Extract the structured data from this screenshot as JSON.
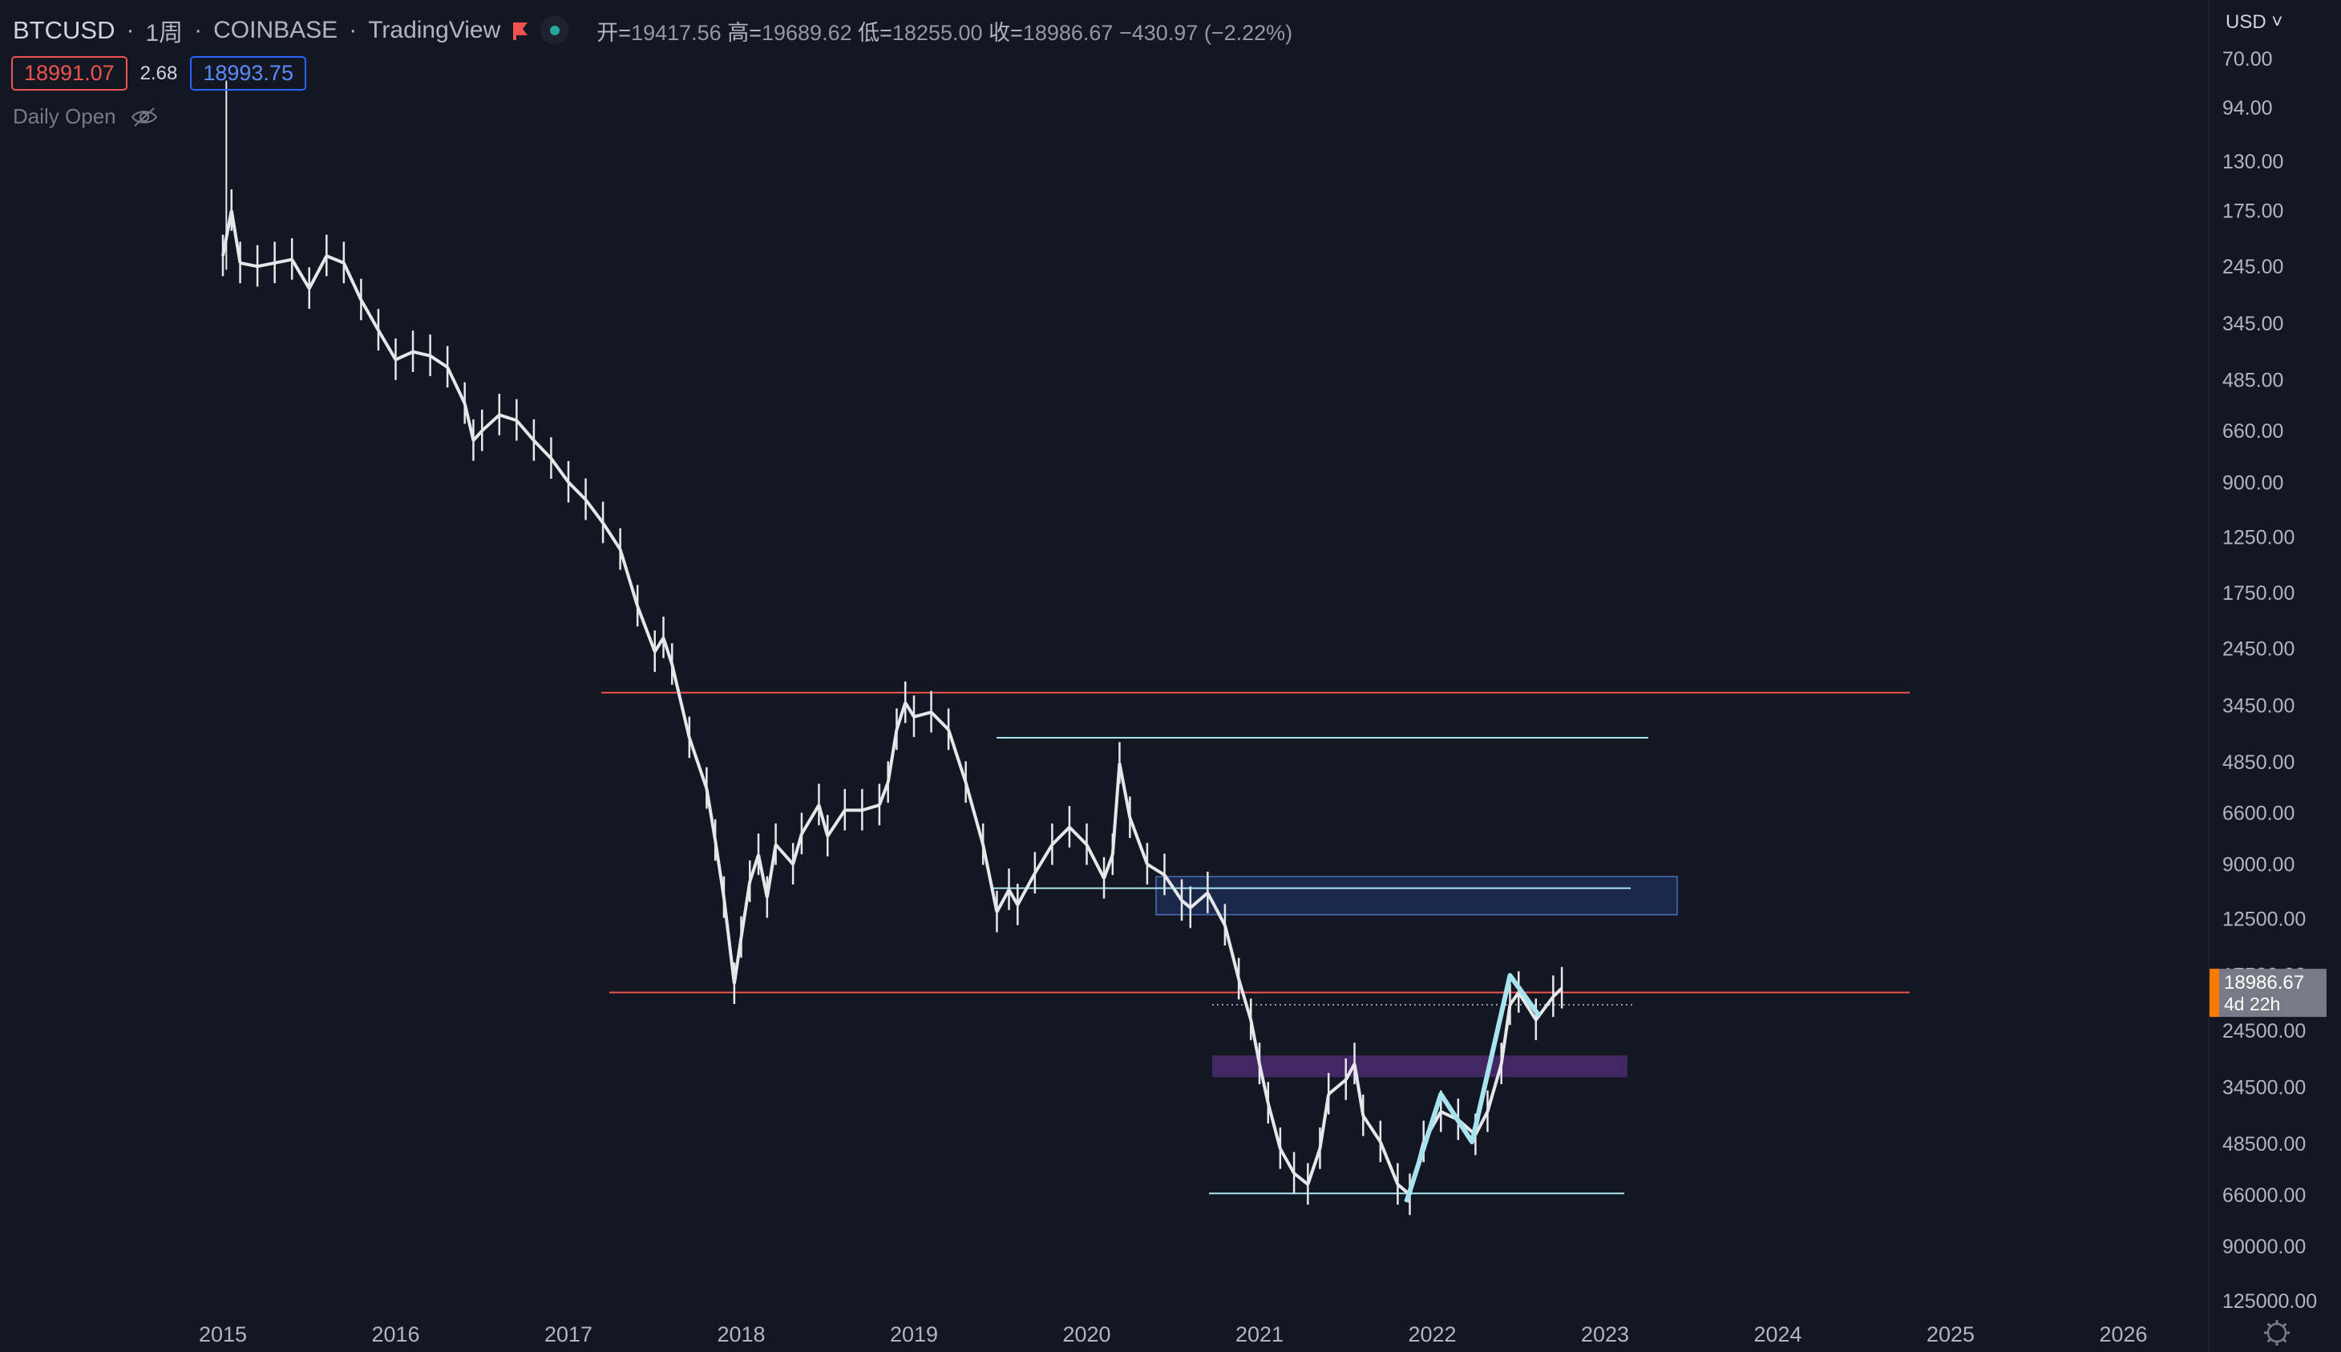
{
  "header": {
    "symbol": "BTCUSD",
    "interval": "1周",
    "exchange": "COINBASE",
    "platform": "TradingView",
    "sep": "·",
    "ohlc": {
      "open_label": "开=",
      "open": "19417.56",
      "high_label": "高=",
      "high": "19689.62",
      "low_label": "低=",
      "low": "18255.00",
      "close_label": "收=",
      "close": "18986.67",
      "change": "−430.97 (−2.22%)"
    }
  },
  "quote": {
    "sell": "18991.07",
    "spread": "2.68",
    "buy": "18993.75"
  },
  "indicator": {
    "name": "Daily Open",
    "icon": "eye-off-icon"
  },
  "price_axis": {
    "currency": "USD",
    "labels": [
      "70.00",
      "94.00",
      "130.00",
      "175.00",
      "245.00",
      "345.00",
      "485.00",
      "660.00",
      "900.00",
      "1250.00",
      "1750.00",
      "2450.00",
      "3450.00",
      "4850.00",
      "6600.00",
      "9000.00",
      "12500.00",
      "17500.00",
      "24500.00",
      "34500.00",
      "48500.00",
      "66000.00",
      "90000.00",
      "125000.00"
    ],
    "last_price": "18986.67",
    "countdown": "4d 22h"
  },
  "colors": {
    "background": "#131722",
    "candle": "#e6e7ea",
    "red_line": "#ef5350",
    "cyan": "#a8e3f0",
    "zone_blue": "#1e2f58",
    "zone_purple": "#4a2a6e",
    "last_price_tag": "#787b86",
    "orange": "#f57c00"
  },
  "chart_data": {
    "type": "line",
    "title": "",
    "scale": "log",
    "inverted": true,
    "x_ticks": [
      "2015",
      "2016",
      "2017",
      "2018",
      "2019",
      "2020",
      "2021",
      "2022",
      "2023",
      "2024",
      "2025",
      "2026"
    ],
    "ylim": [
      60,
      135000
    ],
    "series": [
      {
        "values_xy": [
          [
            2015.0,
            230
          ],
          [
            2015.05,
            175
          ],
          [
            2015.1,
            240
          ],
          [
            2015.2,
            245
          ],
          [
            2015.3,
            240
          ],
          [
            2015.4,
            235
          ],
          [
            2015.5,
            280
          ],
          [
            2015.6,
            230
          ],
          [
            2015.7,
            240
          ],
          [
            2015.8,
            300
          ],
          [
            2015.9,
            360
          ],
          [
            2016.0,
            430
          ],
          [
            2016.1,
            410
          ],
          [
            2016.2,
            420
          ],
          [
            2016.3,
            450
          ],
          [
            2016.4,
            560
          ],
          [
            2016.45,
            700
          ],
          [
            2016.5,
            660
          ],
          [
            2016.6,
            600
          ],
          [
            2016.7,
            620
          ],
          [
            2016.8,
            700
          ],
          [
            2016.9,
            780
          ],
          [
            2017.0,
            900
          ],
          [
            2017.1,
            1000
          ],
          [
            2017.2,
            1150
          ],
          [
            2017.3,
            1350
          ],
          [
            2017.4,
            1900
          ],
          [
            2017.5,
            2500
          ],
          [
            2017.55,
            2300
          ],
          [
            2017.6,
            2700
          ],
          [
            2017.7,
            4200
          ],
          [
            2017.8,
            5700
          ],
          [
            2017.85,
            7800
          ],
          [
            2017.9,
            11000
          ],
          [
            2017.96,
            18500
          ],
          [
            2018.0,
            14000
          ],
          [
            2018.05,
            10000
          ],
          [
            2018.1,
            8500
          ],
          [
            2018.15,
            11000
          ],
          [
            2018.2,
            8000
          ],
          [
            2018.3,
            9000
          ],
          [
            2018.35,
            7500
          ],
          [
            2018.45,
            6300
          ],
          [
            2018.5,
            7600
          ],
          [
            2018.6,
            6500
          ],
          [
            2018.7,
            6500
          ],
          [
            2018.8,
            6300
          ],
          [
            2018.85,
            5500
          ],
          [
            2018.9,
            4000
          ],
          [
            2018.95,
            3400
          ],
          [
            2019.0,
            3700
          ],
          [
            2019.1,
            3600
          ],
          [
            2019.2,
            4000
          ],
          [
            2019.3,
            5500
          ],
          [
            2019.4,
            8000
          ],
          [
            2019.48,
            12000
          ],
          [
            2019.55,
            10500
          ],
          [
            2019.6,
            11500
          ],
          [
            2019.7,
            9500
          ],
          [
            2019.8,
            8000
          ],
          [
            2019.9,
            7200
          ],
          [
            2020.0,
            8000
          ],
          [
            2020.1,
            9800
          ],
          [
            2020.15,
            8500
          ],
          [
            2020.19,
            4900
          ],
          [
            2020.25,
            6800
          ],
          [
            2020.35,
            9000
          ],
          [
            2020.45,
            9600
          ],
          [
            2020.55,
            11200
          ],
          [
            2020.6,
            11700
          ],
          [
            2020.7,
            10700
          ],
          [
            2020.8,
            13000
          ],
          [
            2020.88,
            18000
          ],
          [
            2020.95,
            23000
          ],
          [
            2021.0,
            30000
          ],
          [
            2021.05,
            38000
          ],
          [
            2021.12,
            50000
          ],
          [
            2021.2,
            58000
          ],
          [
            2021.28,
            62000
          ],
          [
            2021.35,
            50000
          ],
          [
            2021.4,
            36000
          ],
          [
            2021.5,
            33000
          ],
          [
            2021.55,
            30000
          ],
          [
            2021.6,
            41000
          ],
          [
            2021.7,
            48000
          ],
          [
            2021.8,
            62000
          ],
          [
            2021.87,
            66000
          ],
          [
            2021.95,
            48000
          ],
          [
            2022.05,
            40000
          ],
          [
            2022.15,
            42000
          ],
          [
            2022.25,
            46000
          ],
          [
            2022.32,
            40000
          ],
          [
            2022.4,
            30000
          ],
          [
            2022.45,
            21000
          ],
          [
            2022.5,
            19500
          ],
          [
            2022.6,
            23000
          ],
          [
            2022.7,
            20000
          ],
          [
            2022.75,
            19000
          ]
        ]
      },
      {
        "name": "",
        "values_xy": [
          [
            2021.85,
            69000
          ],
          [
            2022.05,
            36000
          ],
          [
            2022.23,
            48000
          ],
          [
            2022.45,
            17600
          ],
          [
            2022.62,
            22500
          ]
        ]
      }
    ],
    "horizontal_lines": [
      {
        "price": 3200,
        "color": "red"
      },
      {
        "price": 19500,
        "color": "red"
      },
      {
        "price": 4200,
        "color": "cyan"
      },
      {
        "price": 10400,
        "color": "cyan"
      },
      {
        "price": 65500,
        "color": "cyan"
      },
      {
        "price": 21000,
        "style": "dotted"
      }
    ],
    "zones": [
      {
        "from_price": 9700,
        "to_price": 12200,
        "color": "blue"
      },
      {
        "from_price": 28500,
        "to_price": 32500,
        "color": "purple"
      }
    ]
  }
}
